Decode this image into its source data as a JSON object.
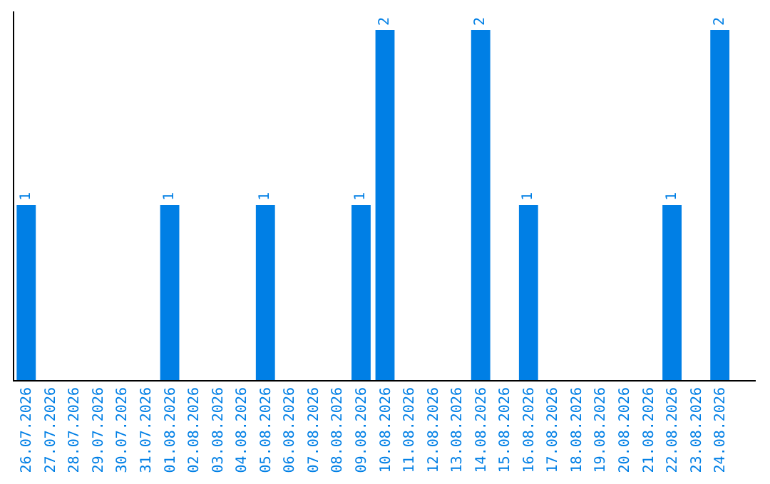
{
  "chart_data": {
    "type": "bar",
    "categories": [
      "26.07.2026",
      "27.07.2026",
      "28.07.2026",
      "29.07.2026",
      "30.07.2026",
      "31.07.2026",
      "01.08.2026",
      "02.08.2026",
      "03.08.2026",
      "04.08.2026",
      "05.08.2026",
      "06.08.2026",
      "07.08.2026",
      "08.08.2026",
      "09.08.2026",
      "10.08.2026",
      "11.08.2026",
      "12.08.2026",
      "13.08.2026",
      "14.08.2026",
      "15.08.2026",
      "16.08.2026",
      "17.08.2026",
      "18.08.2026",
      "19.08.2026",
      "20.08.2026",
      "21.08.2026",
      "22.08.2026",
      "23.08.2026",
      "24.08.2026"
    ],
    "values": [
      1,
      0,
      0,
      0,
      0,
      0,
      1,
      0,
      0,
      0,
      1,
      0,
      0,
      0,
      1,
      2,
      0,
      0,
      0,
      2,
      0,
      1,
      0,
      0,
      0,
      0,
      0,
      1,
      0,
      2
    ],
    "value_labels": [
      "1",
      null,
      null,
      null,
      null,
      null,
      "1",
      null,
      null,
      null,
      "1",
      null,
      null,
      null,
      "1",
      "2",
      null,
      null,
      null,
      "2",
      null,
      "1",
      null,
      null,
      null,
      null,
      null,
      "1",
      null,
      "2"
    ],
    "color": "#007fe5",
    "legend": false
  }
}
